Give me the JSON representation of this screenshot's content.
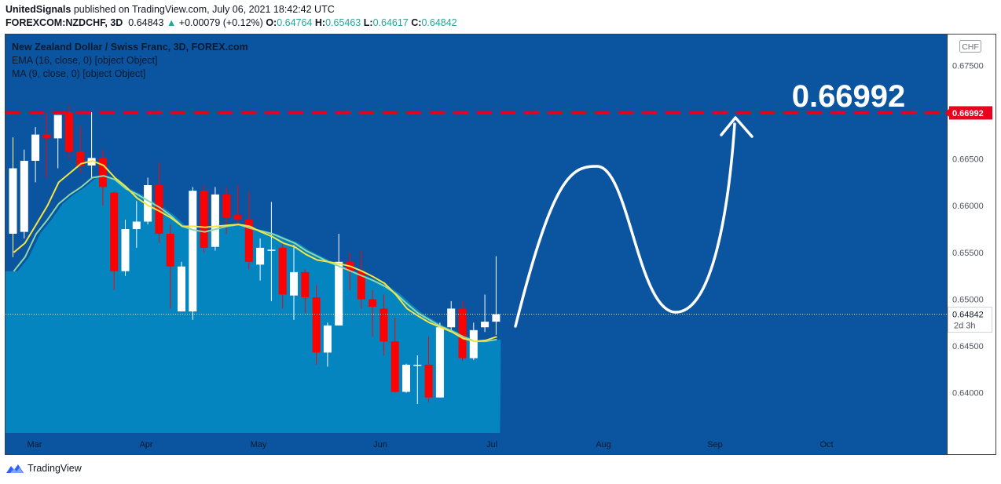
{
  "header": {
    "author": "UnitedSignals",
    "published_text": "published on TradingView.com, July 06, 2021 18:42:42 UTC",
    "symbol": "FOREXCOM:NZDCHF, 3D",
    "last": "0.64843",
    "arrow": "▲",
    "change": "+0.00079 (+0.12%)",
    "o_label": "O:",
    "o_value": "0.64764",
    "h_label": "H:",
    "h_value": "0.65463",
    "l_label": "L:",
    "l_value": "0.64617",
    "c_label": "C:",
    "c_value": "0.64842"
  },
  "legend": {
    "title": "New Zealand Dollar / Swiss Franc, 3D, FOREX.com",
    "ema": "EMA (16, close, 0) [object Object]",
    "ma": "MA (9, close, 0) [object Object]"
  },
  "currency_badge": "CHF",
  "annotation": "0.66992",
  "footer": {
    "brand": "TradingView"
  },
  "colors": {
    "background": "#0b549f",
    "area_fill": "#0585bf",
    "up_candle": "#ffffff",
    "down_candle": "#ff0000",
    "ema": "#f4e542",
    "ma": "#8ed8a8",
    "target_line": "#e8001c"
  },
  "chart_data": {
    "type": "candlestick",
    "x_tick_labels": [
      "Mar",
      "Apr",
      "May",
      "Jun",
      "Jul",
      "Aug",
      "Sep",
      "Oct"
    ],
    "y_tick_labels": [
      "0.67500",
      "0.66500",
      "0.66000",
      "0.65500",
      "0.65000",
      "0.64500",
      "0.64000"
    ],
    "ylim": [
      0.6357,
      0.6783
    ],
    "target_level": 0.66992,
    "target_label": "0.66992",
    "last_price_label": "0.64842",
    "countdown_label": "2d 3h",
    "candles": [
      {
        "o": 0.657,
        "h": 0.6673,
        "l": 0.6545,
        "c": 0.664
      },
      {
        "o": 0.6572,
        "h": 0.666,
        "l": 0.6565,
        "c": 0.6648
      },
      {
        "o": 0.6648,
        "h": 0.6684,
        "l": 0.6625,
        "c": 0.6676
      },
      {
        "o": 0.6676,
        "h": 0.67,
        "l": 0.663,
        "c": 0.6672
      },
      {
        "o": 0.6672,
        "h": 0.6697,
        "l": 0.664,
        "c": 0.6697
      },
      {
        "o": 0.67,
        "h": 0.6708,
        "l": 0.665,
        "c": 0.6658
      },
      {
        "o": 0.6658,
        "h": 0.6685,
        "l": 0.6635,
        "c": 0.6643
      },
      {
        "o": 0.6643,
        "h": 0.67,
        "l": 0.663,
        "c": 0.6651
      },
      {
        "o": 0.6651,
        "h": 0.666,
        "l": 0.66,
        "c": 0.662
      },
      {
        "o": 0.6614,
        "h": 0.6615,
        "l": 0.651,
        "c": 0.653
      },
      {
        "o": 0.653,
        "h": 0.6585,
        "l": 0.6525,
        "c": 0.6575
      },
      {
        "o": 0.6575,
        "h": 0.6605,
        "l": 0.6555,
        "c": 0.6583
      },
      {
        "o": 0.6583,
        "h": 0.663,
        "l": 0.658,
        "c": 0.6622
      },
      {
        "o": 0.6622,
        "h": 0.6646,
        "l": 0.656,
        "c": 0.657
      },
      {
        "o": 0.657,
        "h": 0.658,
        "l": 0.649,
        "c": 0.6535
      },
      {
        "o": 0.6487,
        "h": 0.654,
        "l": 0.6487,
        "c": 0.6535
      },
      {
        "o": 0.6487,
        "h": 0.662,
        "l": 0.6478,
        "c": 0.6616
      },
      {
        "o": 0.6616,
        "h": 0.6622,
        "l": 0.655,
        "c": 0.6555
      },
      {
        "o": 0.6556,
        "h": 0.662,
        "l": 0.6552,
        "c": 0.6612
      },
      {
        "o": 0.6612,
        "h": 0.662,
        "l": 0.657,
        "c": 0.6587
      },
      {
        "o": 0.659,
        "h": 0.6622,
        "l": 0.658,
        "c": 0.6585
      },
      {
        "o": 0.6585,
        "h": 0.6615,
        "l": 0.6532,
        "c": 0.654
      },
      {
        "o": 0.6537,
        "h": 0.6565,
        "l": 0.652,
        "c": 0.6555
      },
      {
        "o": 0.6553,
        "h": 0.6604,
        "l": 0.6498,
        "c": 0.6553
      },
      {
        "o": 0.6555,
        "h": 0.656,
        "l": 0.649,
        "c": 0.6505
      },
      {
        "o": 0.6504,
        "h": 0.6558,
        "l": 0.6478,
        "c": 0.6529
      },
      {
        "o": 0.6529,
        "h": 0.6532,
        "l": 0.6485,
        "c": 0.6502
      },
      {
        "o": 0.6502,
        "h": 0.6515,
        "l": 0.643,
        "c": 0.6443
      },
      {
        "o": 0.6443,
        "h": 0.6475,
        "l": 0.6428,
        "c": 0.6472
      },
      {
        "o": 0.6472,
        "h": 0.657,
        "l": 0.6472,
        "c": 0.654
      },
      {
        "o": 0.654,
        "h": 0.655,
        "l": 0.651,
        "c": 0.653
      },
      {
        "o": 0.653,
        "h": 0.6552,
        "l": 0.649,
        "c": 0.65
      },
      {
        "o": 0.65,
        "h": 0.651,
        "l": 0.646,
        "c": 0.6492
      },
      {
        "o": 0.649,
        "h": 0.6505,
        "l": 0.644,
        "c": 0.6455
      },
      {
        "o": 0.6455,
        "h": 0.648,
        "l": 0.64,
        "c": 0.6401
      },
      {
        "o": 0.6401,
        "h": 0.6431,
        "l": 0.64,
        "c": 0.643
      },
      {
        "o": 0.643,
        "h": 0.644,
        "l": 0.6388,
        "c": 0.643
      },
      {
        "o": 0.643,
        "h": 0.646,
        "l": 0.639,
        "c": 0.6395
      },
      {
        "o": 0.6395,
        "h": 0.6475,
        "l": 0.6395,
        "c": 0.647
      },
      {
        "o": 0.647,
        "h": 0.6498,
        "l": 0.6466,
        "c": 0.649
      },
      {
        "o": 0.649,
        "h": 0.6498,
        "l": 0.6434,
        "c": 0.6437
      },
      {
        "o": 0.6437,
        "h": 0.6475,
        "l": 0.6435,
        "c": 0.6467
      },
      {
        "o": 0.647,
        "h": 0.6505,
        "l": 0.6465,
        "c": 0.6476
      },
      {
        "o": 0.6476,
        "h": 0.6546,
        "l": 0.6462,
        "c": 0.6484
      }
    ],
    "ema": [
      0.655,
      0.656,
      0.658,
      0.66,
      0.6625,
      0.6635,
      0.6645,
      0.6648,
      0.6643,
      0.663,
      0.662,
      0.6608,
      0.66,
      0.6594,
      0.6587,
      0.6578,
      0.6578,
      0.6577,
      0.6578,
      0.6579,
      0.658,
      0.6578,
      0.6572,
      0.6567,
      0.656,
      0.6556,
      0.6548,
      0.6542,
      0.654,
      0.6538,
      0.6535,
      0.653,
      0.6524,
      0.6517,
      0.6505,
      0.649,
      0.6482,
      0.6475,
      0.647,
      0.6465,
      0.6458,
      0.6455,
      0.6456,
      0.646
    ],
    "ma": [
      0.653,
      0.6545,
      0.657,
      0.6585,
      0.6602,
      0.6612,
      0.662,
      0.663,
      0.6632,
      0.6628,
      0.6618,
      0.6612,
      0.6605,
      0.6598,
      0.6589,
      0.6578,
      0.6574,
      0.6572,
      0.6575,
      0.6578,
      0.658,
      0.6576,
      0.6573,
      0.657,
      0.6565,
      0.656,
      0.6552,
      0.6546,
      0.654,
      0.6535,
      0.653,
      0.6525,
      0.652,
      0.6514,
      0.6506,
      0.6495,
      0.6485,
      0.6478,
      0.6471,
      0.6466,
      0.646,
      0.6455,
      0.6455,
      0.6457
    ]
  }
}
